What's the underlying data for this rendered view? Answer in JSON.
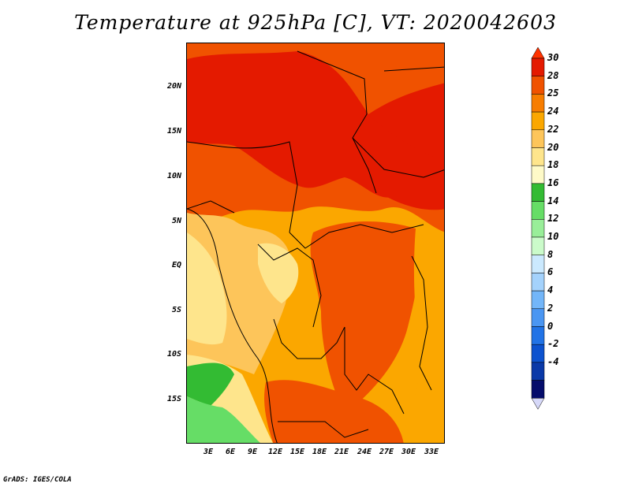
{
  "title": "Temperature at 925hPa [C], VT: 2020042603",
  "credit": "GrADS: IGES/COLA",
  "lat_labels": [
    "20N",
    "15N",
    "10N",
    "5N",
    "EQ",
    "5S",
    "10S",
    "15S"
  ],
  "lon_labels": [
    "3E",
    "6E",
    "9E",
    "12E",
    "15E",
    "18E",
    "21E",
    "24E",
    "27E",
    "30E",
    "33E"
  ],
  "colorbar": {
    "labels": [
      "30",
      "28",
      "25",
      "24",
      "22",
      "20",
      "18",
      "16",
      "14",
      "12",
      "10",
      "8",
      "6",
      "4",
      "2",
      "0",
      "-2",
      "-4"
    ],
    "colors": [
      "#ff3300",
      "#e41a00",
      "#f05200",
      "#f77d00",
      "#fba700",
      "#fdc55a",
      "#fee58c",
      "#fefac8",
      "#33bb33",
      "#66dd66",
      "#99ee99",
      "#cbfbca",
      "#cbe9fe",
      "#a4d2fc",
      "#73b6f9",
      "#4a96f2",
      "#2173e6",
      "#0c52cf",
      "#0a39a8",
      "#050c6b",
      "#d6d8f8"
    ]
  }
}
